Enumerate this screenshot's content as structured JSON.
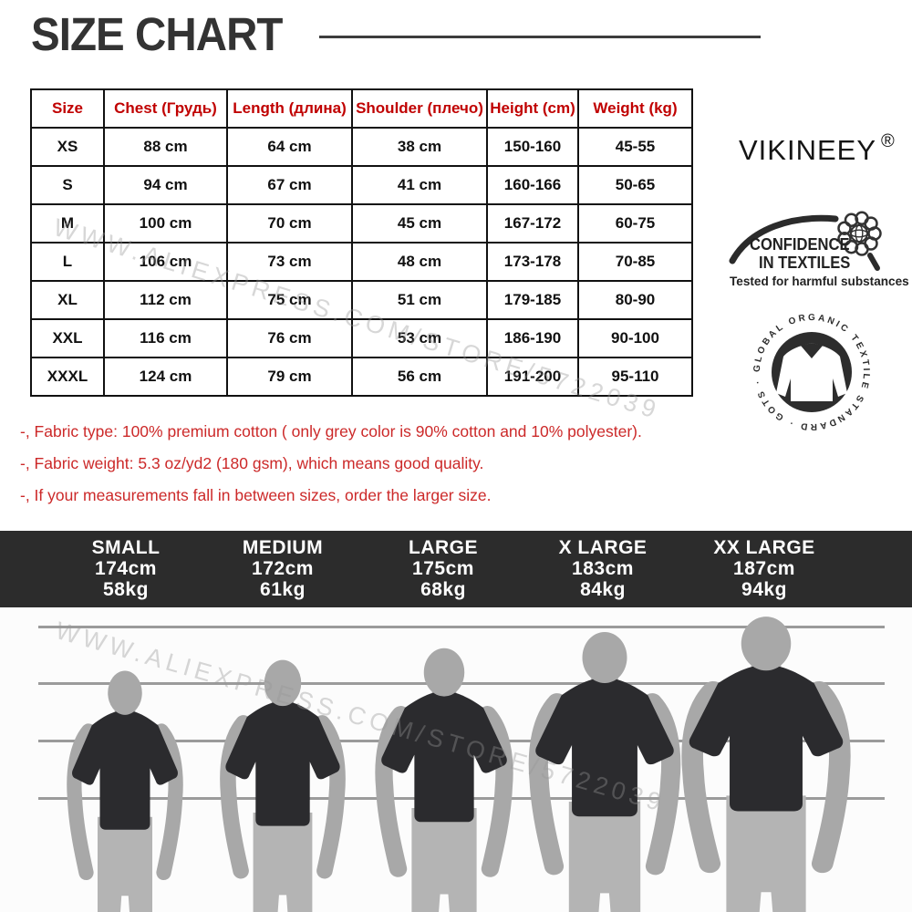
{
  "title": "SIZE CHART",
  "brand": {
    "name": "VIKINEEY",
    "registered_mark": "®"
  },
  "size_table": {
    "headers": [
      "Size",
      "Chest (Грудь)",
      "Length (длина)",
      "Shoulder (плечо)",
      "Height (cm)",
      "Weight (kg)"
    ],
    "rows": [
      [
        "XS",
        "88 cm",
        "64 cm",
        "38 cm",
        "150-160",
        "45-55"
      ],
      [
        "S",
        "94 cm",
        "67 cm",
        "41 cm",
        "160-166",
        "50-65"
      ],
      [
        "M",
        "100 cm",
        "70 cm",
        "45 cm",
        "167-172",
        "60-75"
      ],
      [
        "L",
        "106 cm",
        "73 cm",
        "48 cm",
        "173-178",
        "70-85"
      ],
      [
        "XL",
        "112 cm",
        "75 cm",
        "51 cm",
        "179-185",
        "80-90"
      ],
      [
        "XXL",
        "116 cm",
        "76 cm",
        "53 cm",
        "186-190",
        "90-100"
      ],
      [
        "XXXL",
        "124 cm",
        "79 cm",
        "56 cm",
        "191-200",
        "95-110"
      ]
    ]
  },
  "notes": [
    "-, Fabric type: 100% premium cotton ( only grey color is 90% cotton and 10% polyester).",
    "-, Fabric weight: 5.3 oz/yd2 (180 gsm), which means good quality.",
    "-, If your measurements fall in between sizes, order the larger size."
  ],
  "certifications": {
    "oeko_tex": {
      "title_line1": "CONFIDENCE",
      "title_line2": "IN TEXTILES",
      "subtitle": "Tested for harmful substances"
    },
    "gots": {
      "ring_text": "GLOBAL ORGANIC TEXTILE STANDARD · GOTS ·"
    }
  },
  "size_figures": [
    {
      "label": "SMALL",
      "height": "174cm",
      "weight": "58kg"
    },
    {
      "label": "MEDIUM",
      "height": "172cm",
      "weight": "61kg"
    },
    {
      "label": "LARGE",
      "height": "175cm",
      "weight": "68kg"
    },
    {
      "label": "X LARGE",
      "height": "183cm",
      "weight": "84kg"
    },
    {
      "label": "XX LARGE",
      "height": "187cm",
      "weight": "94kg"
    }
  ],
  "watermark_text": "WWW.ALIEXPRESS.COM/STORE/5722039",
  "colors": {
    "table_header_red": "#c00000",
    "notes_red": "#cc2929",
    "band_background": "#2c2c2c",
    "title_gray": "#333333",
    "silhouette_skin": "#a8a8a8",
    "silhouette_shirt": "#2b2b2e",
    "silhouette_legs": "#b4b4b4",
    "lineup_line_gray": "#9b9b9b"
  }
}
